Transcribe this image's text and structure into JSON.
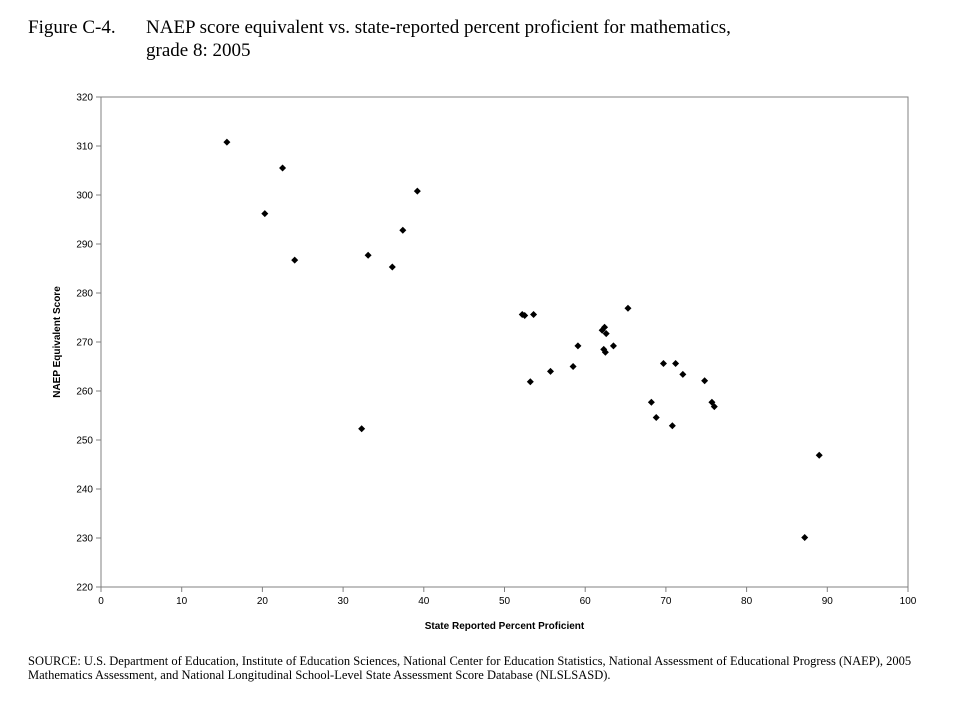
{
  "figure": {
    "label": "Figure C-4.",
    "title_line1": "NAEP score equivalent vs. state-reported percent proficient for mathematics,",
    "title_line2": "grade 8: 2005"
  },
  "source": "SOURCE: U.S. Department of Education, Institute of Education Sciences, National Center for Education Statistics, National Assessment of Educational Progress (NAEP), 2005 Mathematics Assessment, and National Longitudinal School-Level State Assessment Score Database (NLSLSASD).",
  "chart_data": {
    "type": "scatter",
    "xlabel": "State Reported Percent Proficient",
    "ylabel": "NAEP Equivalent Score",
    "xlim": [
      0,
      100
    ],
    "ylim": [
      220,
      320
    ],
    "xticks": [
      0,
      10,
      20,
      30,
      40,
      50,
      60,
      70,
      80,
      90,
      100
    ],
    "yticks": [
      220,
      230,
      240,
      250,
      260,
      270,
      280,
      290,
      300,
      310,
      320
    ],
    "grid": false,
    "marker": "diamond",
    "marker_color": "#000000",
    "points": [
      [
        15.6,
        310.8
      ],
      [
        20.3,
        296.2
      ],
      [
        22.5,
        305.5
      ],
      [
        24.0,
        286.7
      ],
      [
        32.3,
        252.3
      ],
      [
        33.1,
        287.7
      ],
      [
        36.1,
        285.3
      ],
      [
        37.4,
        292.8
      ],
      [
        39.2,
        300.8
      ],
      [
        52.2,
        275.6
      ],
      [
        52.5,
        275.4
      ],
      [
        53.2,
        261.9
      ],
      [
        53.6,
        275.6
      ],
      [
        55.7,
        264.0
      ],
      [
        58.5,
        265.0
      ],
      [
        59.1,
        269.2
      ],
      [
        62.1,
        272.4
      ],
      [
        62.3,
        268.5
      ],
      [
        62.4,
        273.0
      ],
      [
        62.5,
        267.9
      ],
      [
        62.6,
        271.7
      ],
      [
        63.5,
        269.2
      ],
      [
        65.3,
        276.9
      ],
      [
        68.2,
        257.7
      ],
      [
        68.8,
        254.6
      ],
      [
        69.7,
        265.6
      ],
      [
        70.8,
        252.9
      ],
      [
        71.2,
        265.6
      ],
      [
        72.1,
        263.4
      ],
      [
        74.8,
        262.1
      ],
      [
        75.7,
        257.7
      ],
      [
        76.0,
        256.8
      ],
      [
        87.2,
        230.1
      ],
      [
        89.0,
        246.9
      ]
    ]
  }
}
